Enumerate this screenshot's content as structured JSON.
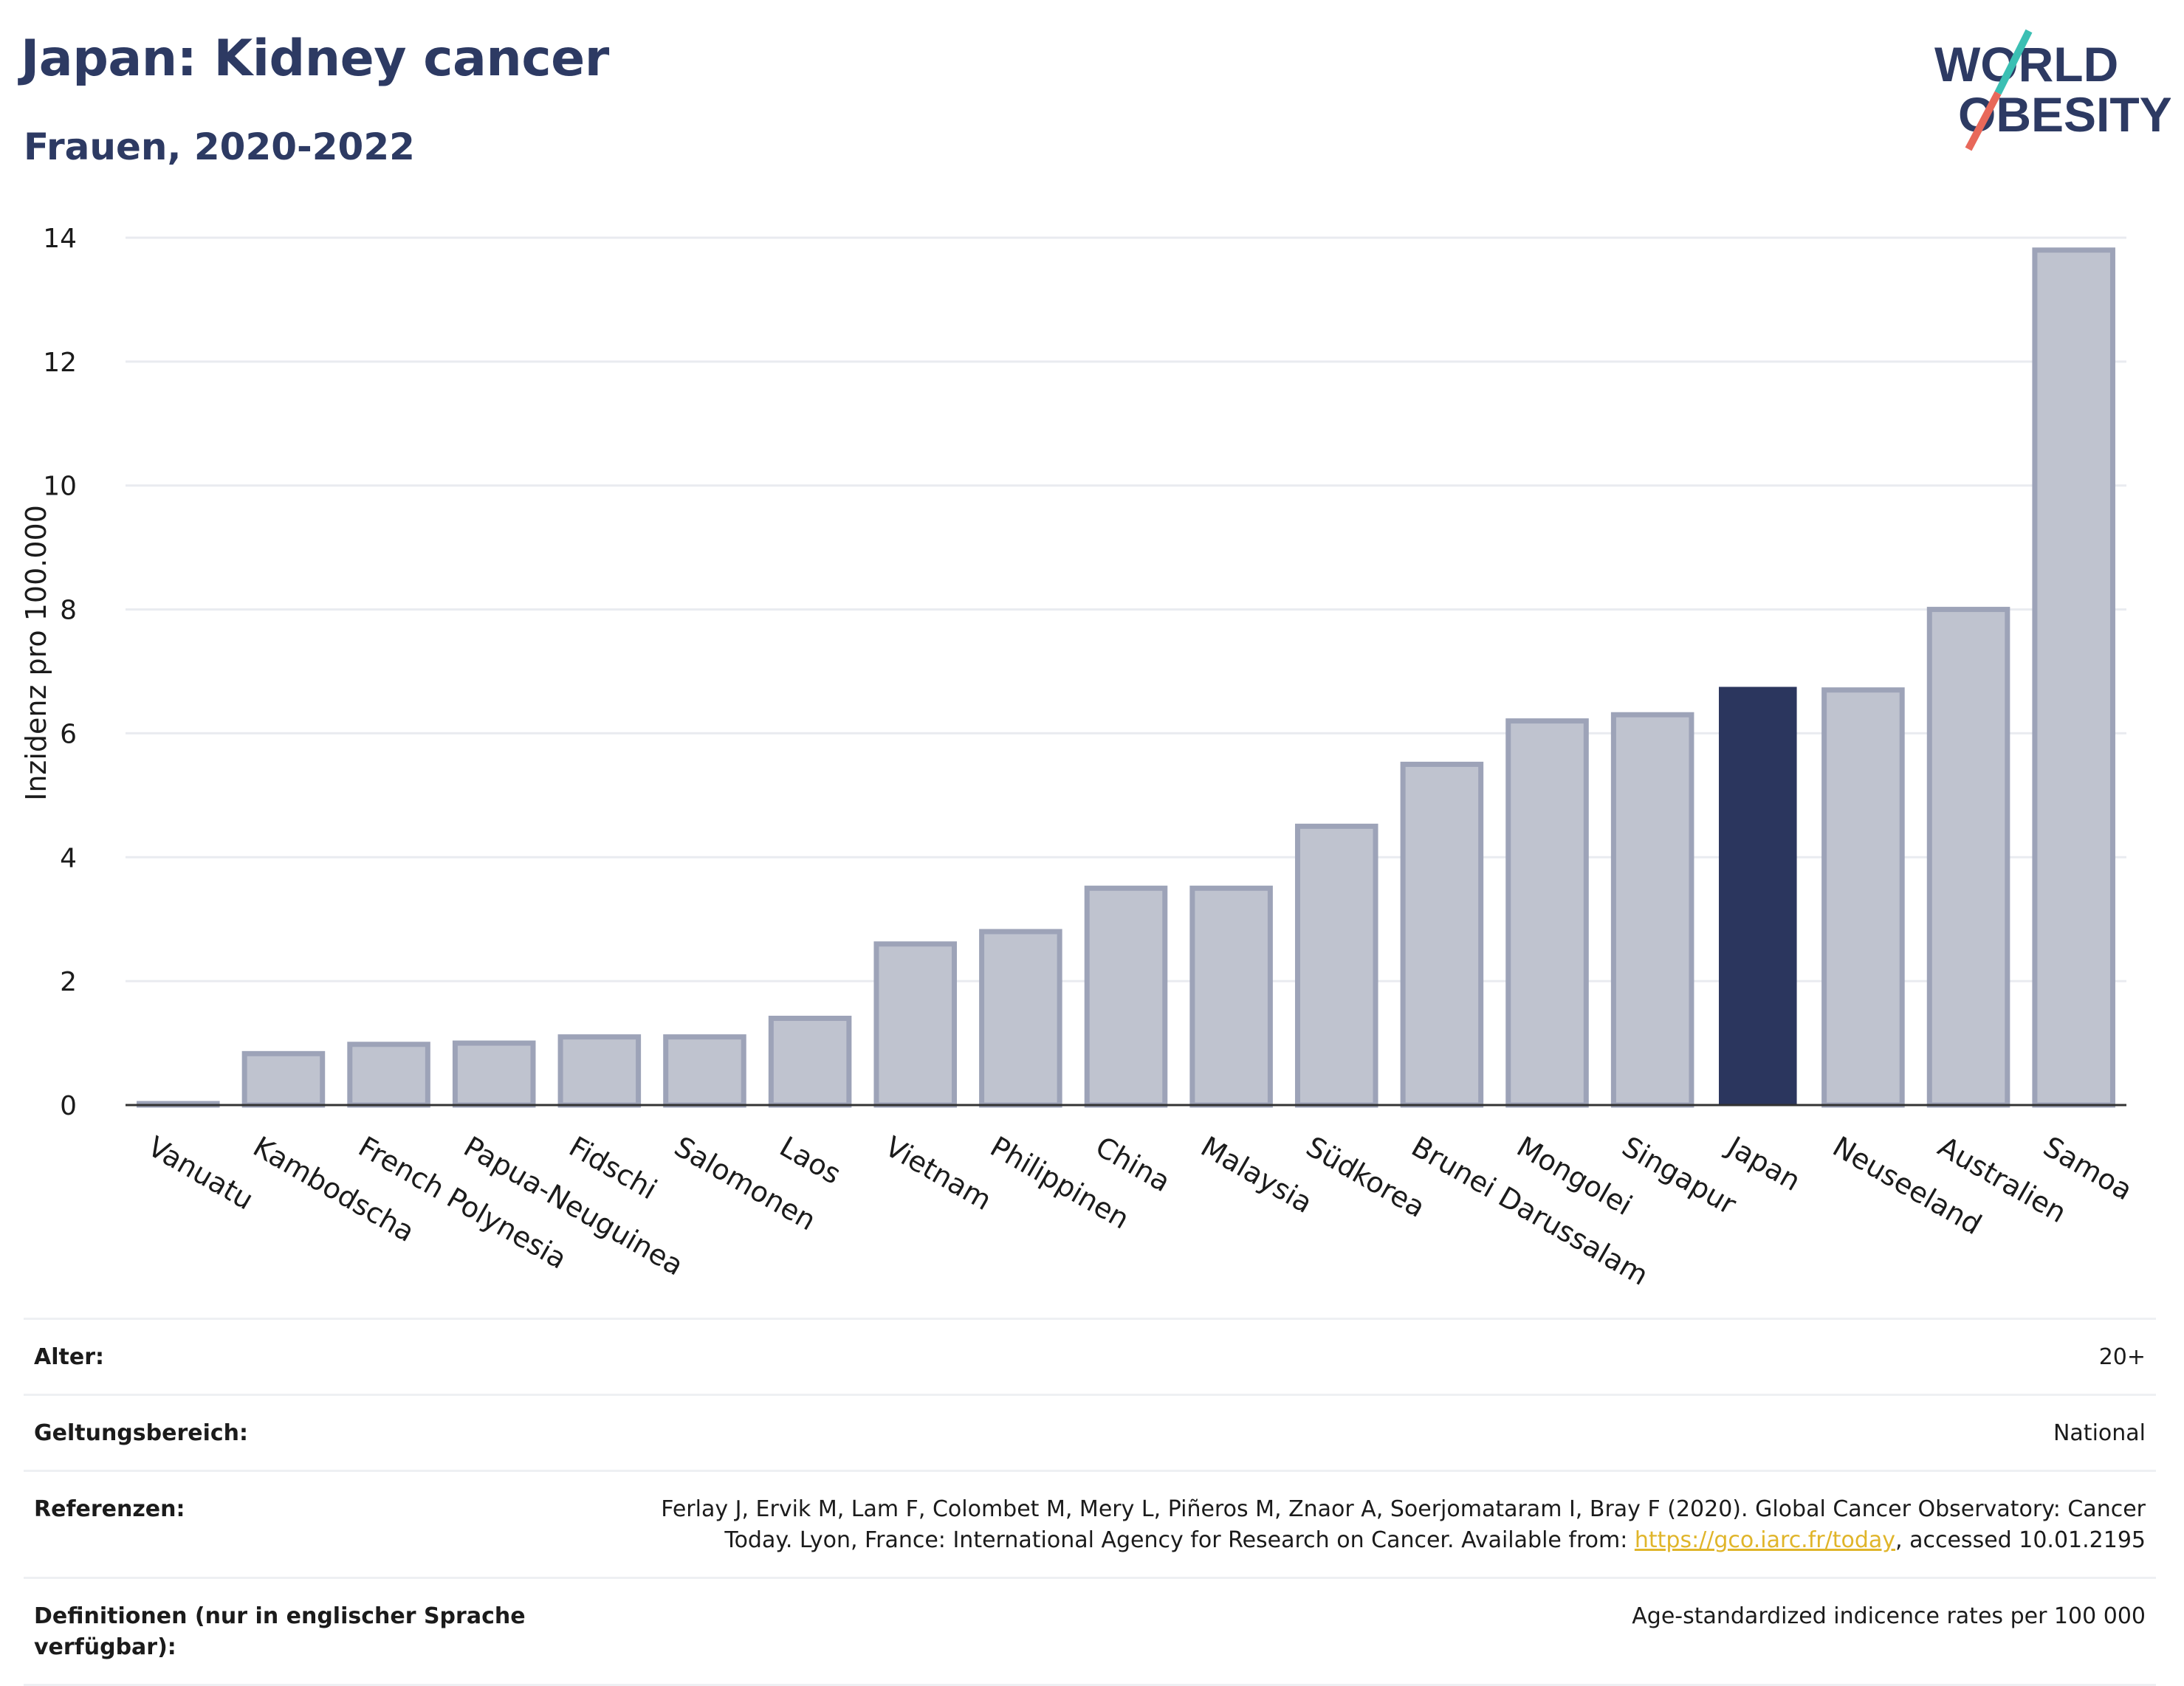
{
  "header": {
    "title": "Japan: Kidney cancer",
    "subtitle": "Frauen, 2020-2022",
    "logo_line1": "WORLD",
    "logo_line2": "OBESITY"
  },
  "colors": {
    "highlight": "#2b365e",
    "bar_fill": "#bfc3cf",
    "bar_stroke": "#9da3b8",
    "title": "#2d3a63",
    "logo_teal": "#3bbfb3",
    "logo_red": "#e8685a",
    "link": "#e0b52a"
  },
  "chart_data": {
    "type": "bar",
    "title": "Japan: Kidney cancer",
    "subtitle": "Frauen, 2020-2022",
    "xlabel": "",
    "ylabel": "Inzidenz pro 100.000",
    "ylim": [
      0,
      14
    ],
    "yticks": [
      0,
      2,
      4,
      6,
      8,
      10,
      12,
      14
    ],
    "grid": true,
    "highlight": "Japan",
    "categories": [
      "Vanuatu",
      "Kambodscha",
      "French Polynesia",
      "Papua-Neuguinea",
      "Fidschi",
      "Salomonen",
      "Laos",
      "Vietnam",
      "Philippinen",
      "China",
      "Malaysia",
      "Südkorea",
      "Brunei Darussalam",
      "Mongolei",
      "Singapur",
      "Japan",
      "Neuseeland",
      "Australien",
      "Samoa"
    ],
    "values": [
      0.02,
      0.83,
      0.98,
      1.0,
      1.1,
      1.1,
      1.4,
      2.6,
      2.8,
      3.5,
      3.5,
      4.5,
      5.5,
      6.2,
      6.3,
      6.75,
      6.7,
      8.0,
      13.8
    ]
  },
  "meta": {
    "rows": [
      {
        "key": "Alter:",
        "value": "20+"
      },
      {
        "key": "Geltungsbereich:",
        "value": "National"
      },
      {
        "key": "Referenzen:",
        "value_pre": "Ferlay J, Ervik M, Lam F, Colombet M, Mery L, Piñeros M, Znaor A, Soerjomataram I, Bray F (2020). Global Cancer Observatory: Cancer Today. Lyon, France: International Agency for Research on Cancer. Available from: ",
        "link": "https://gco.iarc.fr/today",
        "value_post": ", accessed 10.01.2195"
      },
      {
        "key": "Definitionen (nur in englischer Sprache verfügbar):",
        "value": "Age-standardized indicence rates per 100 000"
      }
    ]
  }
}
